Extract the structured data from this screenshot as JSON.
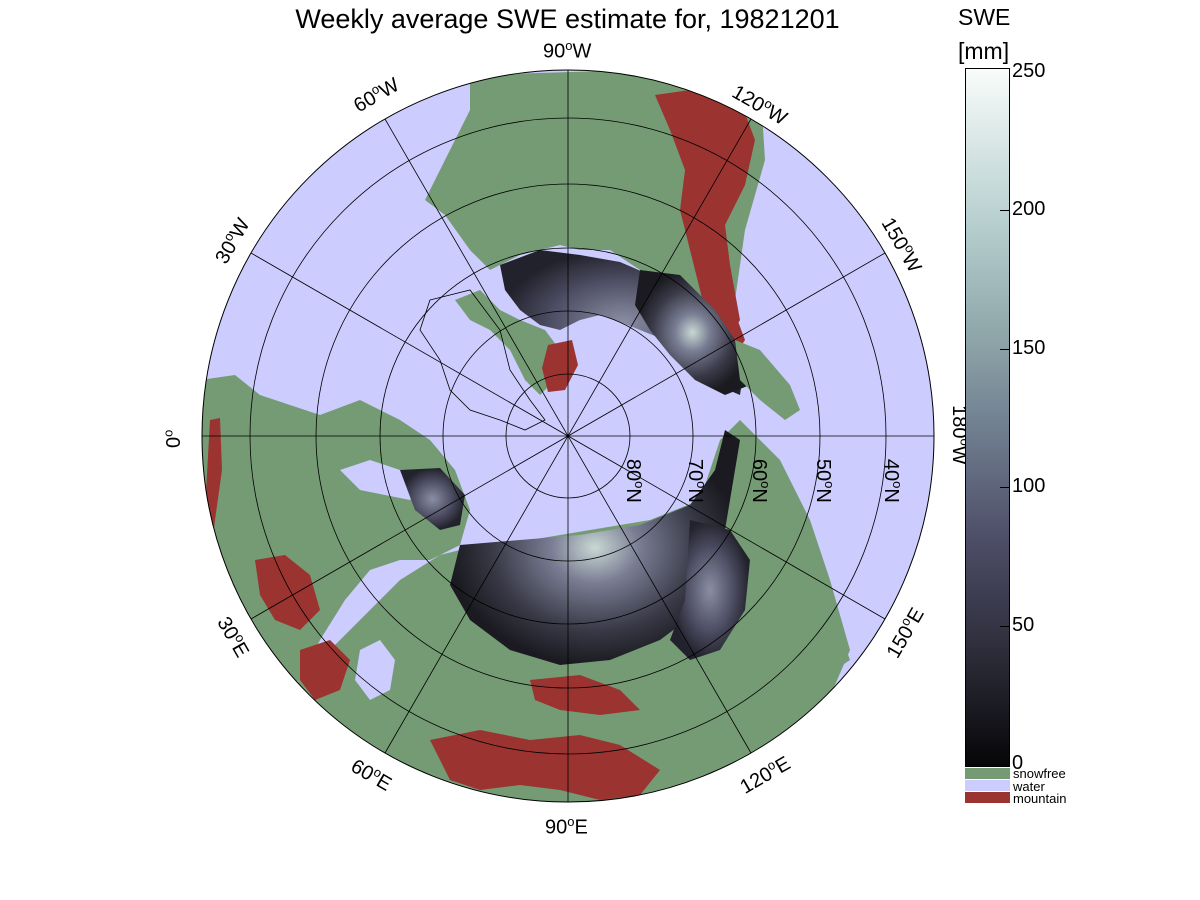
{
  "title": "Weekly average SWE estimate for, 19821201",
  "colors": {
    "water": "#ccccff",
    "snowfree": "#759b74",
    "mountain": "#9b3331",
    "snow_low": "#0a0a0e",
    "snow_high": "#f8fcfa"
  },
  "longitude_labels": {
    "w90": "90",
    "w60": "60",
    "w120": "120",
    "w30": "30",
    "w150": "150",
    "zero": "0",
    "e180": "180",
    "e30": "30",
    "e150": "150",
    "e60": "60",
    "e120": "120",
    "e90": "90",
    "deg": "o",
    "W": "W",
    "E": "E"
  },
  "latitude_labels": [
    "80",
    "70",
    "60",
    "50",
    "40"
  ],
  "latitude_suffix": "N",
  "colorbar": {
    "title": "SWE",
    "unit": "[mm]",
    "ticks": [
      "250",
      "200",
      "150",
      "100",
      "50",
      "0"
    ],
    "range": [
      0,
      250
    ],
    "categories": [
      {
        "label": "snowfree",
        "color": "#759b74"
      },
      {
        "label": "water",
        "color": "#ccccff"
      },
      {
        "label": "mountain",
        "color": "#9b3331"
      }
    ]
  }
}
